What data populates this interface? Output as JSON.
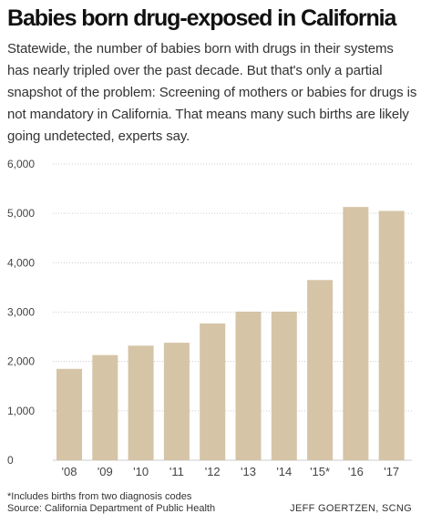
{
  "header": {
    "title": "Babies born drug-exposed in California",
    "subtitle": "Statewide, the number of babies born with drugs in their systems has nearly tripled over the past decade. But that's only a partial snapshot of the problem: Screening of mothers or babies for drugs is not mandatory in California. That means many such births are likely going undetected, experts say."
  },
  "footer": {
    "footnote": "*Includes births from two diagnosis codes",
    "source": "Source: California Department of Public Health",
    "credit": "JEFF GOERTZEN, SCNG"
  },
  "colors": {
    "bar": "#d5c4a6",
    "grid": "#cccccc",
    "axis_text": "#444444"
  },
  "chart_data": {
    "type": "bar",
    "categories": [
      "'08",
      "'09",
      "'10",
      "'11",
      "'12",
      "'13",
      "'14",
      "'15*",
      "'16",
      "'17"
    ],
    "values": [
      1850,
      2130,
      2320,
      2380,
      2770,
      3010,
      3010,
      3650,
      5130,
      5050
    ],
    "ylim": [
      0,
      6000
    ],
    "yticks": [
      0,
      1000,
      2000,
      3000,
      4000,
      5000,
      6000
    ],
    "ytick_labels": [
      "0",
      "1,000",
      "2,000",
      "3,000",
      "4,000",
      "5,000",
      "6,000"
    ],
    "grid": true,
    "title": "",
    "xlabel": "",
    "ylabel": ""
  }
}
